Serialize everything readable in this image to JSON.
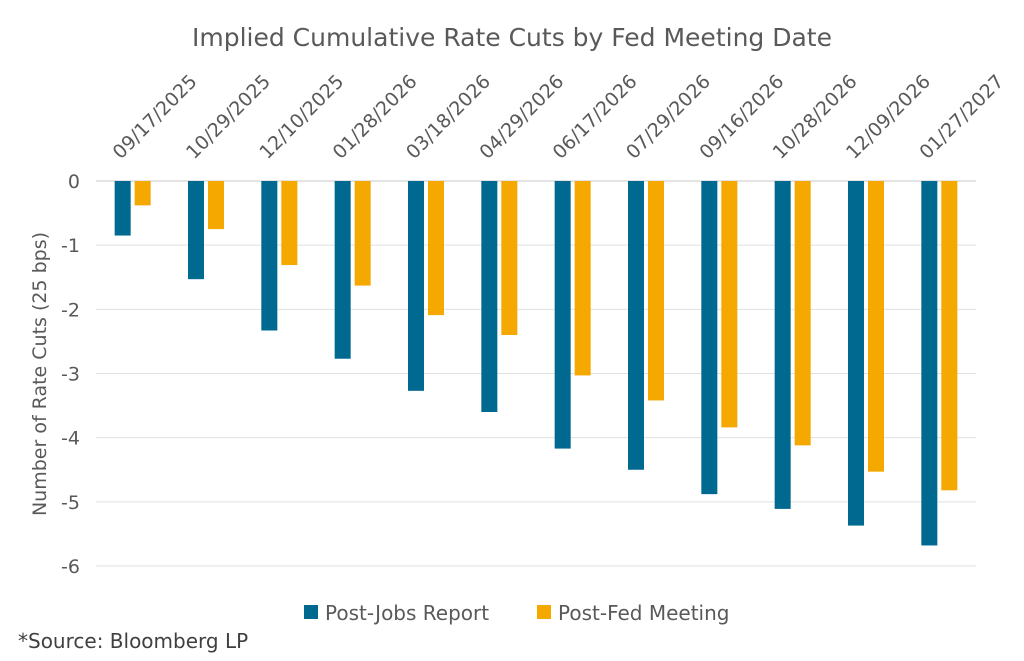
{
  "chart_data": {
    "type": "bar",
    "title": "Implied Cumulative Rate Cuts by Fed Meeting Date",
    "xlabel": "",
    "ylabel": "Number of Rate Cuts (25 bps)",
    "ylim": [
      -6,
      0
    ],
    "yticks": [
      0,
      -1,
      -2,
      -3,
      -4,
      -5,
      -6
    ],
    "ytick_labels": [
      "0",
      "-1",
      "-2",
      "-3",
      "-4",
      "-5",
      "-6"
    ],
    "grid": true,
    "legend_position": "bottom",
    "categories": [
      "09/17/2025",
      "10/29/2025",
      "12/10/2025",
      "01/28/2026",
      "03/18/2026",
      "04/29/2026",
      "06/17/2026",
      "07/29/2026",
      "09/16/2026",
      "10/28/2026",
      "12/09/2026",
      "01/27/2027"
    ],
    "series": [
      {
        "name": "Post-Jobs Report",
        "color": "#00698f",
        "values": [
          -0.85,
          -1.53,
          -2.33,
          -2.77,
          -3.27,
          -3.6,
          -4.17,
          -4.5,
          -4.88,
          -5.11,
          -5.37,
          -5.68
        ]
      },
      {
        "name": "Post-Fed Meeting",
        "color": "#f5a800",
        "values": [
          -0.38,
          -0.75,
          -1.31,
          -1.63,
          -2.09,
          -2.4,
          -3.03,
          -3.42,
          -3.84,
          -4.12,
          -4.53,
          -4.82
        ]
      }
    ]
  },
  "footer": {
    "source": "*Source: Bloomberg LP"
  }
}
